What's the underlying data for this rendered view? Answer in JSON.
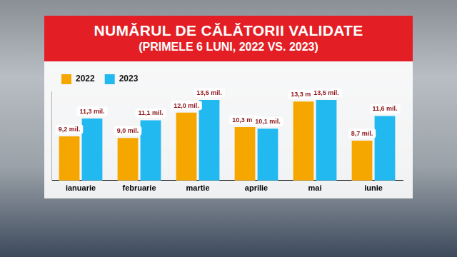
{
  "chart_data": {
    "type": "bar",
    "title": "NUMĂRUL DE CĂLĂTORII VALIDATE",
    "subtitle": "(PRIMELE 6 LUNI, 2022 VS. 2023)",
    "categories": [
      "ianuarie",
      "februarie",
      "martie",
      "aprilie",
      "mai",
      "iunie"
    ],
    "series": [
      {
        "name": "2022",
        "color": "#f5a700",
        "values": [
          9.2,
          9.0,
          12.0,
          10.3,
          13.3,
          8.7
        ],
        "value_labels": [
          "9,2 mil.",
          "9,0 mil.",
          "12,0 mil.",
          "10,3 mil.",
          "13,3 mil.",
          "8,7 mil."
        ]
      },
      {
        "name": "2023",
        "color": "#22b8f0",
        "values": [
          11.3,
          11.1,
          13.5,
          10.1,
          13.5,
          11.6
        ],
        "value_labels": [
          "11,3 mil.",
          "11,1 mil.",
          "13,5 mil.",
          "10,1 mil.",
          "13,5 mil.",
          "11,6 mil."
        ]
      }
    ],
    "ylim": [
      4,
      14.5
    ],
    "grid": false,
    "legend": "top-left",
    "data_labels": true,
    "tick_labels": "x"
  }
}
